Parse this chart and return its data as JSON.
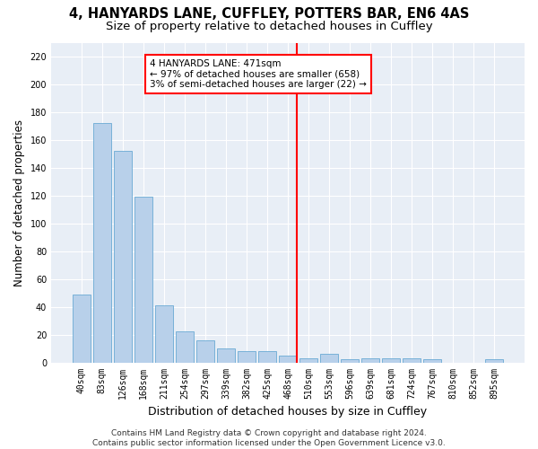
{
  "title_line1": "4, HANYARDS LANE, CUFFLEY, POTTERS BAR, EN6 4AS",
  "title_line2": "Size of property relative to detached houses in Cuffley",
  "xlabel": "Distribution of detached houses by size in Cuffley",
  "ylabel": "Number of detached properties",
  "categories": [
    "40sqm",
    "83sqm",
    "126sqm",
    "168sqm",
    "211sqm",
    "254sqm",
    "297sqm",
    "339sqm",
    "382sqm",
    "425sqm",
    "468sqm",
    "510sqm",
    "553sqm",
    "596sqm",
    "639sqm",
    "681sqm",
    "724sqm",
    "767sqm",
    "810sqm",
    "852sqm",
    "895sqm"
  ],
  "values": [
    49,
    172,
    152,
    119,
    41,
    22,
    16,
    10,
    8,
    8,
    5,
    3,
    6,
    2,
    3,
    3,
    3,
    2,
    0,
    0,
    2
  ],
  "bar_color": "#b8d0ea",
  "bar_edge_color": "#6aaad4",
  "vline_x_index": 10,
  "vline_color": "red",
  "annotation_text": "4 HANYARDS LANE: 471sqm\n← 97% of detached houses are smaller (658)\n3% of semi-detached houses are larger (22) →",
  "annotation_box_color": "white",
  "annotation_box_edge_color": "red",
  "ylim": [
    0,
    230
  ],
  "yticks": [
    0,
    20,
    40,
    60,
    80,
    100,
    120,
    140,
    160,
    180,
    200,
    220
  ],
  "background_color": "#e8eef6",
  "grid_color": "white",
  "footer": "Contains HM Land Registry data © Crown copyright and database right 2024.\nContains public sector information licensed under the Open Government Licence v3.0.",
  "title_fontsize": 10.5,
  "subtitle_fontsize": 9.5,
  "xlabel_fontsize": 9,
  "ylabel_fontsize": 8.5,
  "tick_fontsize": 7,
  "footer_fontsize": 6.5,
  "annotation_fontsize": 7.5
}
